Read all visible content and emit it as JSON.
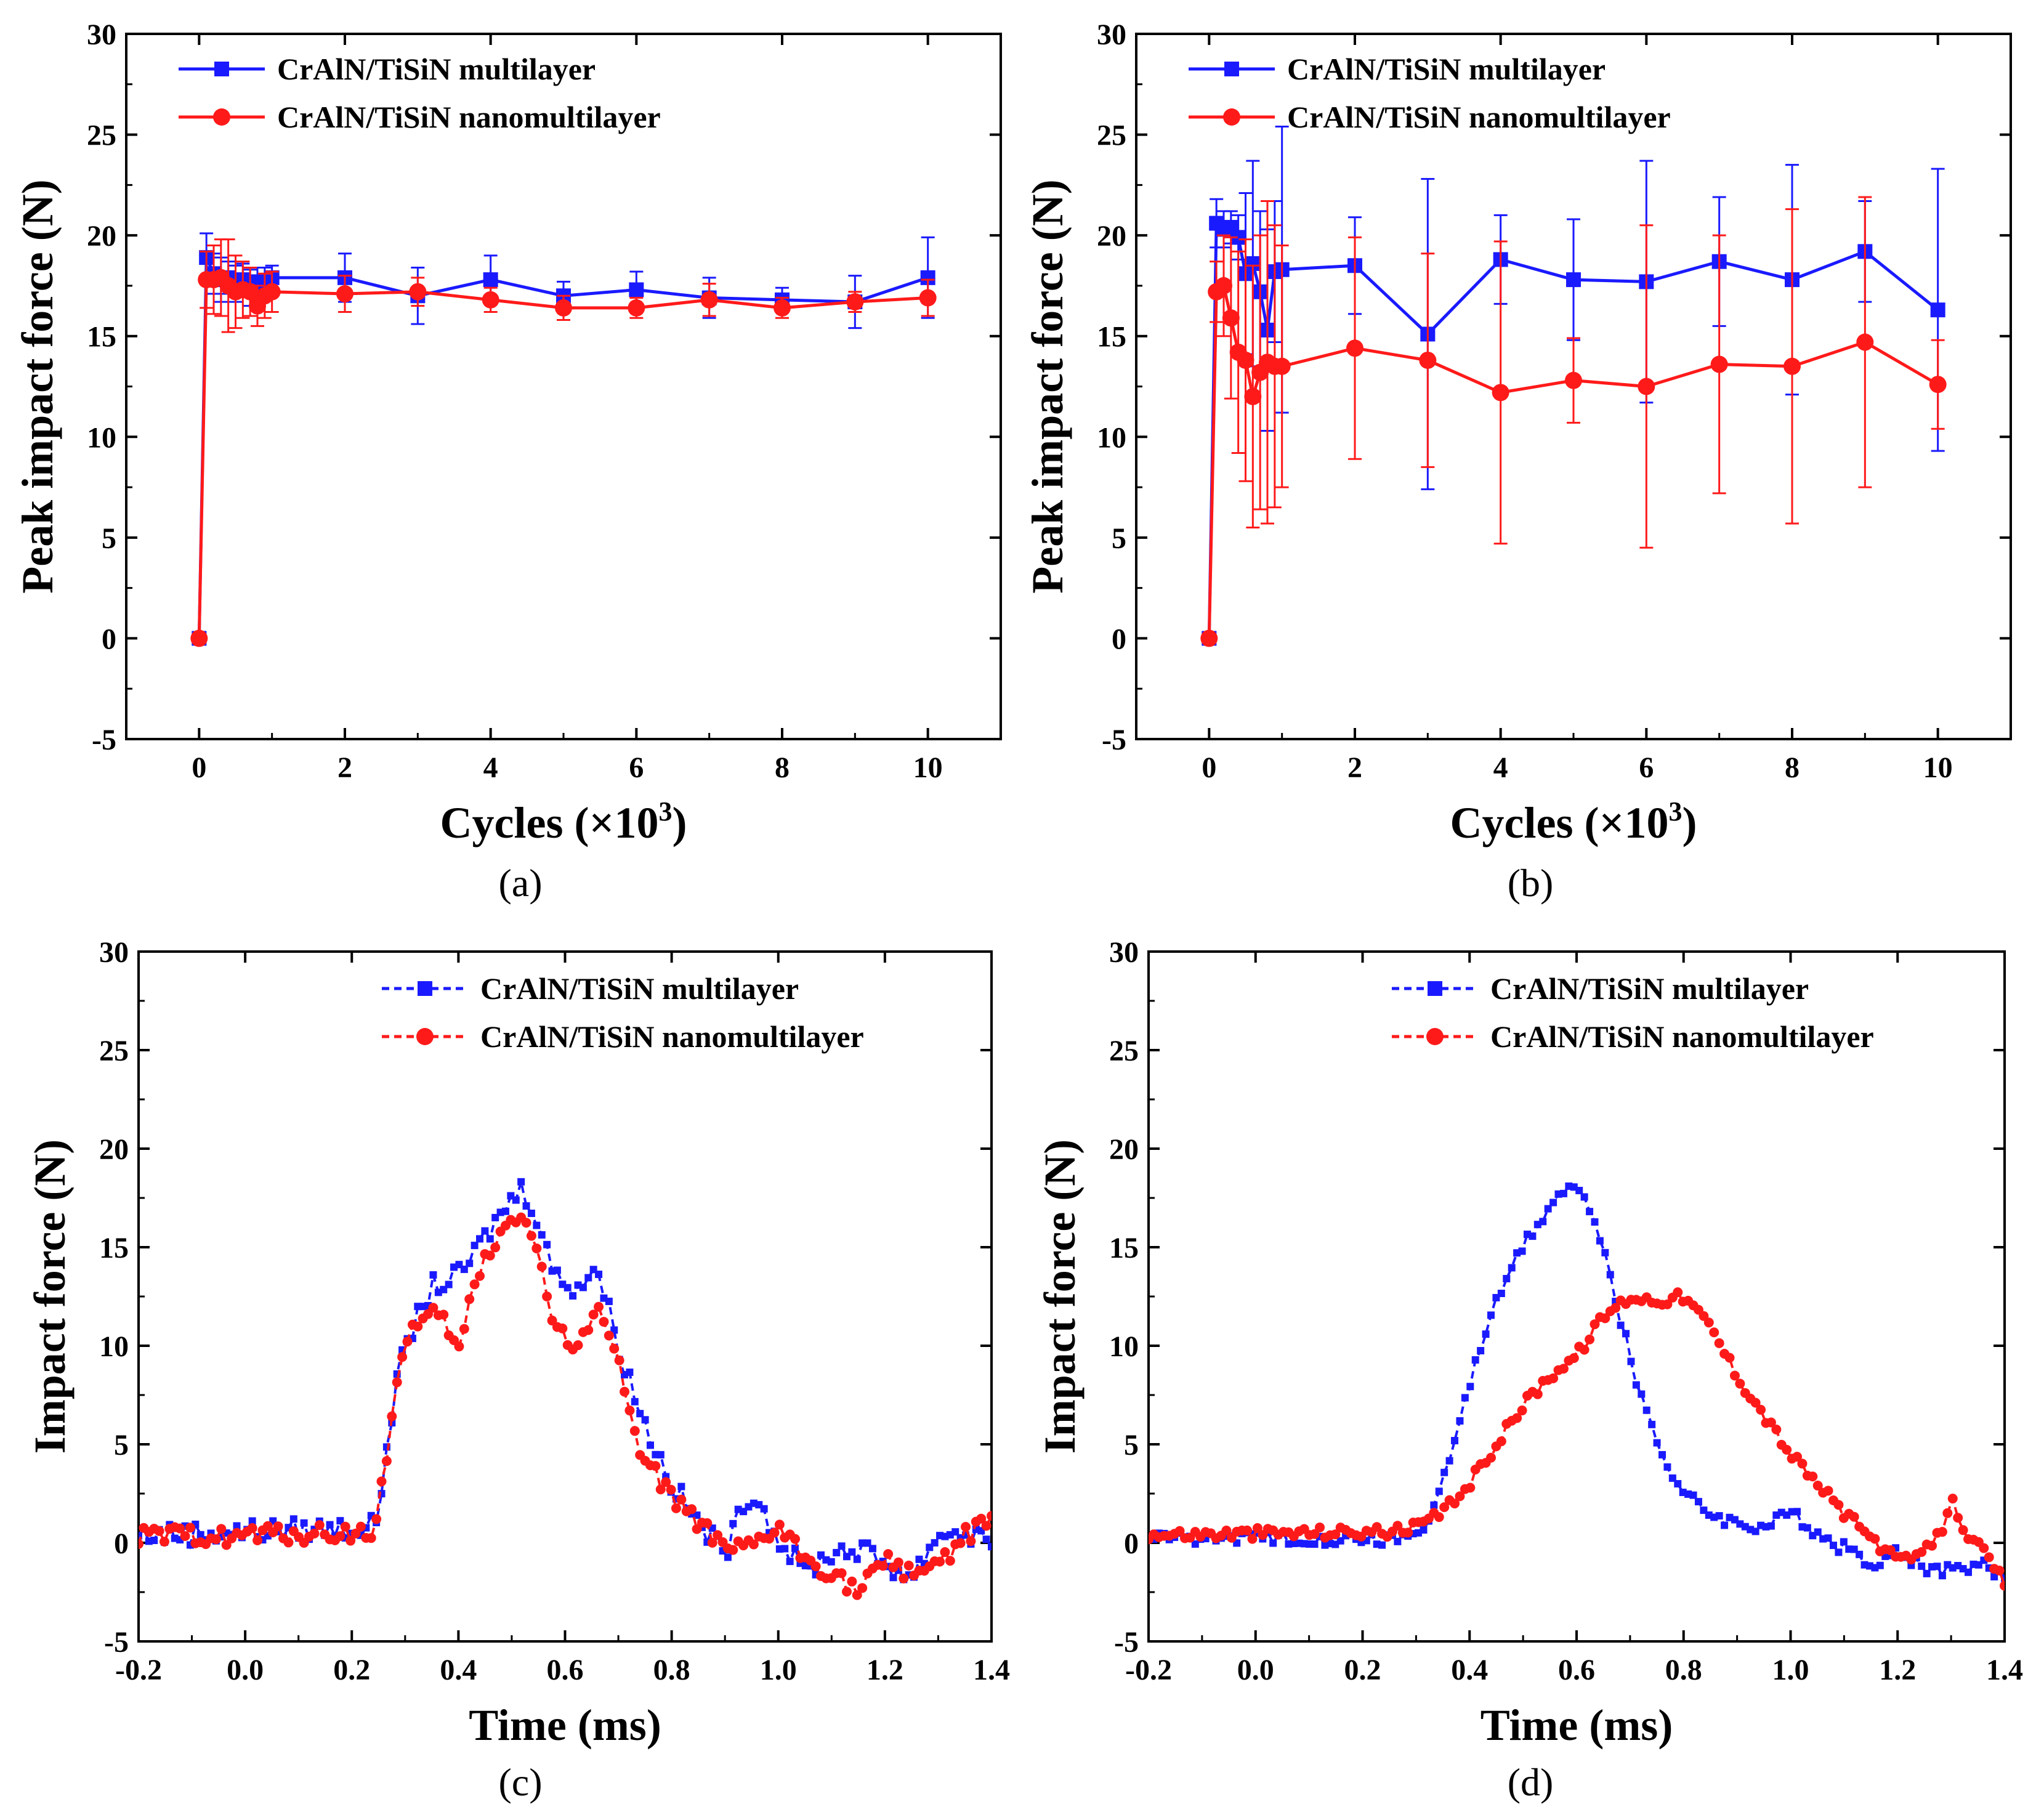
{
  "series_names": {
    "multilayer": "CrAlN/TiSiN multilayer",
    "nanomultilayer": "CrAlN/TiSiN nanomultilayer"
  },
  "colors": {
    "multilayer": "#1a1aff",
    "nanomultilayer": "#ff1a1a"
  },
  "chart_data": [
    {
      "panel": "(a)",
      "type": "line",
      "xlabel": "Cycles (×10",
      "xlabel_sup": "3",
      "xlabel_end": ")",
      "ylabel": "Peak impact force (N)",
      "xlim": [
        -1,
        11
      ],
      "ylim": [
        -5,
        30
      ],
      "xticks": [
        0,
        2,
        4,
        6,
        8,
        10
      ],
      "yticks": [
        -5,
        0,
        5,
        10,
        15,
        20,
        25,
        30
      ],
      "legend_position": "top-left",
      "series": [
        {
          "name": "CrAlN/TiSiN multilayer",
          "x": [
            0,
            0.1,
            0.2,
            0.3,
            0.4,
            0.5,
            0.6,
            0.7,
            0.8,
            0.9,
            1,
            2,
            3,
            4,
            5,
            6,
            7,
            8,
            9,
            10
          ],
          "y": [
            0,
            18.9,
            18.1,
            17.8,
            17.9,
            17.6,
            17.8,
            17.4,
            17.7,
            17.6,
            17.9,
            17.9,
            17.0,
            17.8,
            17.0,
            17.3,
            16.9,
            16.8,
            16.7,
            17.9
          ],
          "err": [
            0,
            1.2,
            1.0,
            1.1,
            0.8,
            0.9,
            0.8,
            0.9,
            0.7,
            0.8,
            0.6,
            1.2,
            1.4,
            1.2,
            0.7,
            0.9,
            1.0,
            0.6,
            1.3,
            2.0
          ]
        },
        {
          "name": "CrAlN/TiSiN nanomultilayer",
          "x": [
            0,
            0.1,
            0.2,
            0.3,
            0.4,
            0.5,
            0.6,
            0.7,
            0.8,
            0.9,
            1,
            2,
            3,
            4,
            5,
            6,
            7,
            8,
            9,
            10
          ],
          "y": [
            0,
            17.8,
            17.8,
            17.9,
            17.5,
            17.2,
            17.3,
            17.2,
            16.5,
            17.0,
            17.2,
            17.1,
            17.2,
            16.8,
            16.4,
            16.4,
            16.8,
            16.4,
            16.7,
            16.9
          ],
          "err": [
            0,
            1.4,
            1.7,
            1.9,
            2.3,
            1.8,
            1.4,
            1.2,
            1.0,
            1.1,
            1.0,
            0.9,
            0.7,
            0.6,
            0.6,
            0.5,
            0.8,
            0.5,
            0.5,
            0.9
          ]
        }
      ]
    },
    {
      "panel": "(b)",
      "type": "line",
      "xlabel": "Cycles (×10",
      "xlabel_sup": "3",
      "xlabel_end": ")",
      "ylabel": "Peak impact force (N)",
      "xlim": [
        -1,
        11
      ],
      "ylim": [
        -5,
        30
      ],
      "xticks": [
        0,
        2,
        4,
        6,
        8,
        10
      ],
      "yticks": [
        -5,
        0,
        5,
        10,
        15,
        20,
        25,
        30
      ],
      "legend_position": "top-left",
      "series": [
        {
          "name": "CrAlN/TiSiN multilayer",
          "x": [
            0,
            0.1,
            0.2,
            0.3,
            0.4,
            0.5,
            0.6,
            0.7,
            0.8,
            0.9,
            1,
            2,
            3,
            4,
            5,
            6,
            7,
            8,
            9,
            10
          ],
          "y": [
            0,
            20.6,
            20.3,
            20.4,
            19.9,
            18.1,
            18.6,
            17.2,
            15.3,
            18.2,
            18.3,
            18.5,
            15.1,
            18.8,
            17.8,
            17.7,
            18.7,
            17.8,
            19.2,
            16.3
          ],
          "err": [
            0,
            1.2,
            0.9,
            0.8,
            1.1,
            4.0,
            5.1,
            4.0,
            5.0,
            3.5,
            7.1,
            2.4,
            7.7,
            2.2,
            3.0,
            6.0,
            3.2,
            5.7,
            2.5,
            7.0
          ]
        },
        {
          "name": "CrAlN/TiSiN nanomultilayer",
          "x": [
            0,
            0.1,
            0.2,
            0.3,
            0.4,
            0.5,
            0.6,
            0.7,
            0.8,
            0.9,
            1,
            2,
            3,
            4,
            5,
            6,
            7,
            8,
            9,
            10
          ],
          "y": [
            0,
            17.2,
            17.5,
            15.9,
            14.2,
            13.8,
            12.0,
            13.2,
            13.7,
            13.5,
            13.5,
            14.4,
            13.8,
            12.2,
            12.8,
            12.5,
            13.6,
            13.5,
            14.7,
            12.6
          ],
          "err": [
            0,
            1.5,
            2.5,
            4.0,
            5.0,
            6.0,
            6.5,
            6.8,
            8.0,
            7.0,
            6.0,
            5.5,
            5.3,
            7.5,
            2.1,
            8.0,
            6.4,
            7.8,
            7.2,
            2.2
          ]
        }
      ]
    },
    {
      "panel": "(c)",
      "type": "line",
      "xlabel": "Time (ms)",
      "ylabel": "Impact force (N)",
      "xlim": [
        -0.2,
        1.4
      ],
      "ylim": [
        -5,
        30
      ],
      "xticks": [
        -0.2,
        0.0,
        0.2,
        0.4,
        0.6,
        0.8,
        1.0,
        1.2,
        1.4
      ],
      "yticks": [
        -5,
        0,
        5,
        10,
        15,
        20,
        25,
        30
      ],
      "legend_position": "top-right",
      "series": [
        {
          "name": "CrAlN/TiSiN multilayer",
          "x": [
            -0.2,
            0.24,
            0.25,
            0.27,
            0.3,
            0.35,
            0.4,
            0.45,
            0.5,
            0.52,
            0.55,
            0.58,
            0.62,
            0.66,
            0.7,
            0.75,
            0.8,
            0.85,
            0.9,
            0.95,
            1.0,
            1.05,
            1.1,
            1.15,
            1.2,
            1.25,
            1.3,
            1.35,
            1.4
          ],
          "y": [
            0.4,
            0.8,
            1.5,
            6.0,
            10.0,
            13.0,
            13.5,
            15.5,
            17.5,
            18.0,
            16.5,
            13.5,
            13.0,
            14.0,
            10.0,
            6.0,
            3.0,
            1.0,
            -0.5,
            2.8,
            0.2,
            -1.5,
            -0.5,
            -0.3,
            -1.0,
            -1.8,
            0.5,
            0.5,
            0.2
          ],
          "noise": 0.6
        },
        {
          "name": "CrAlN/TiSiN nanomultilayer",
          "x": [
            -0.2,
            0.24,
            0.25,
            0.27,
            0.3,
            0.35,
            0.38,
            0.4,
            0.42,
            0.45,
            0.5,
            0.52,
            0.55,
            0.58,
            0.62,
            0.66,
            0.7,
            0.75,
            0.8,
            0.85,
            0.9,
            0.95,
            1.0,
            1.05,
            1.1,
            1.15,
            1.2,
            1.25,
            1.3,
            1.35,
            1.4
          ],
          "y": [
            0.3,
            0.5,
            1.5,
            5.5,
            10.5,
            11.5,
            11.0,
            9.5,
            12.0,
            14.5,
            16.5,
            16.8,
            14.5,
            11.0,
            9.5,
            12.5,
            9.0,
            4.0,
            2.5,
            1.0,
            -0.5,
            -0.3,
            0.8,
            -0.8,
            -1.5,
            -2.5,
            -1.0,
            -1.5,
            -1.0,
            0.3,
            1.0
          ],
          "noise": 0.5
        }
      ]
    },
    {
      "panel": "(d)",
      "type": "line",
      "xlabel": "Time (ms)",
      "ylabel": "Impact force (N)",
      "xlim": [
        -0.2,
        1.4
      ],
      "ylim": [
        -5,
        30
      ],
      "xticks": [
        -0.2,
        0.0,
        0.2,
        0.4,
        0.6,
        0.8,
        1.0,
        1.2,
        1.4
      ],
      "yticks": [
        -5,
        0,
        5,
        10,
        15,
        20,
        25,
        30
      ],
      "legend_position": "top-right",
      "series": [
        {
          "name": "CrAlN/TiSiN multilayer",
          "x": [
            -0.2,
            0.28,
            0.3,
            0.33,
            0.36,
            0.4,
            0.45,
            0.5,
            0.55,
            0.58,
            0.62,
            0.65,
            0.68,
            0.72,
            0.76,
            0.8,
            0.85,
            0.9,
            0.95,
            1.0,
            1.05,
            1.1,
            1.15,
            1.2,
            1.25,
            1.3,
            1.35,
            1.4
          ],
          "y": [
            0.3,
            0.2,
            0.5,
            1.5,
            4.0,
            8.0,
            12.5,
            15.0,
            17.0,
            18.0,
            17.5,
            15.0,
            11.5,
            7.5,
            4.5,
            2.5,
            1.5,
            1.0,
            0.8,
            1.5,
            0.5,
            -0.3,
            -1.0,
            -0.5,
            -1.2,
            -1.5,
            -1.0,
            -1.8
          ],
          "noise": 0.35
        },
        {
          "name": "CrAlN/TiSiN nanomultilayer",
          "x": [
            -0.2,
            0.28,
            0.32,
            0.36,
            0.4,
            0.45,
            0.5,
            0.55,
            0.6,
            0.65,
            0.7,
            0.75,
            0.8,
            0.85,
            0.9,
            0.95,
            1.0,
            1.05,
            1.1,
            1.15,
            1.2,
            1.25,
            1.28,
            1.3,
            1.33,
            1.36,
            1.4
          ],
          "y": [
            0.4,
            0.6,
            1.0,
            1.8,
            3.0,
            5.0,
            7.0,
            8.5,
            9.5,
            11.5,
            12.5,
            12.3,
            12.5,
            11.0,
            8.5,
            6.5,
            4.5,
            3.0,
            1.5,
            0.3,
            -1.0,
            -0.5,
            0.5,
            2.2,
            0.5,
            -0.5,
            -2.0
          ],
          "noise": 0.3
        }
      ]
    }
  ]
}
